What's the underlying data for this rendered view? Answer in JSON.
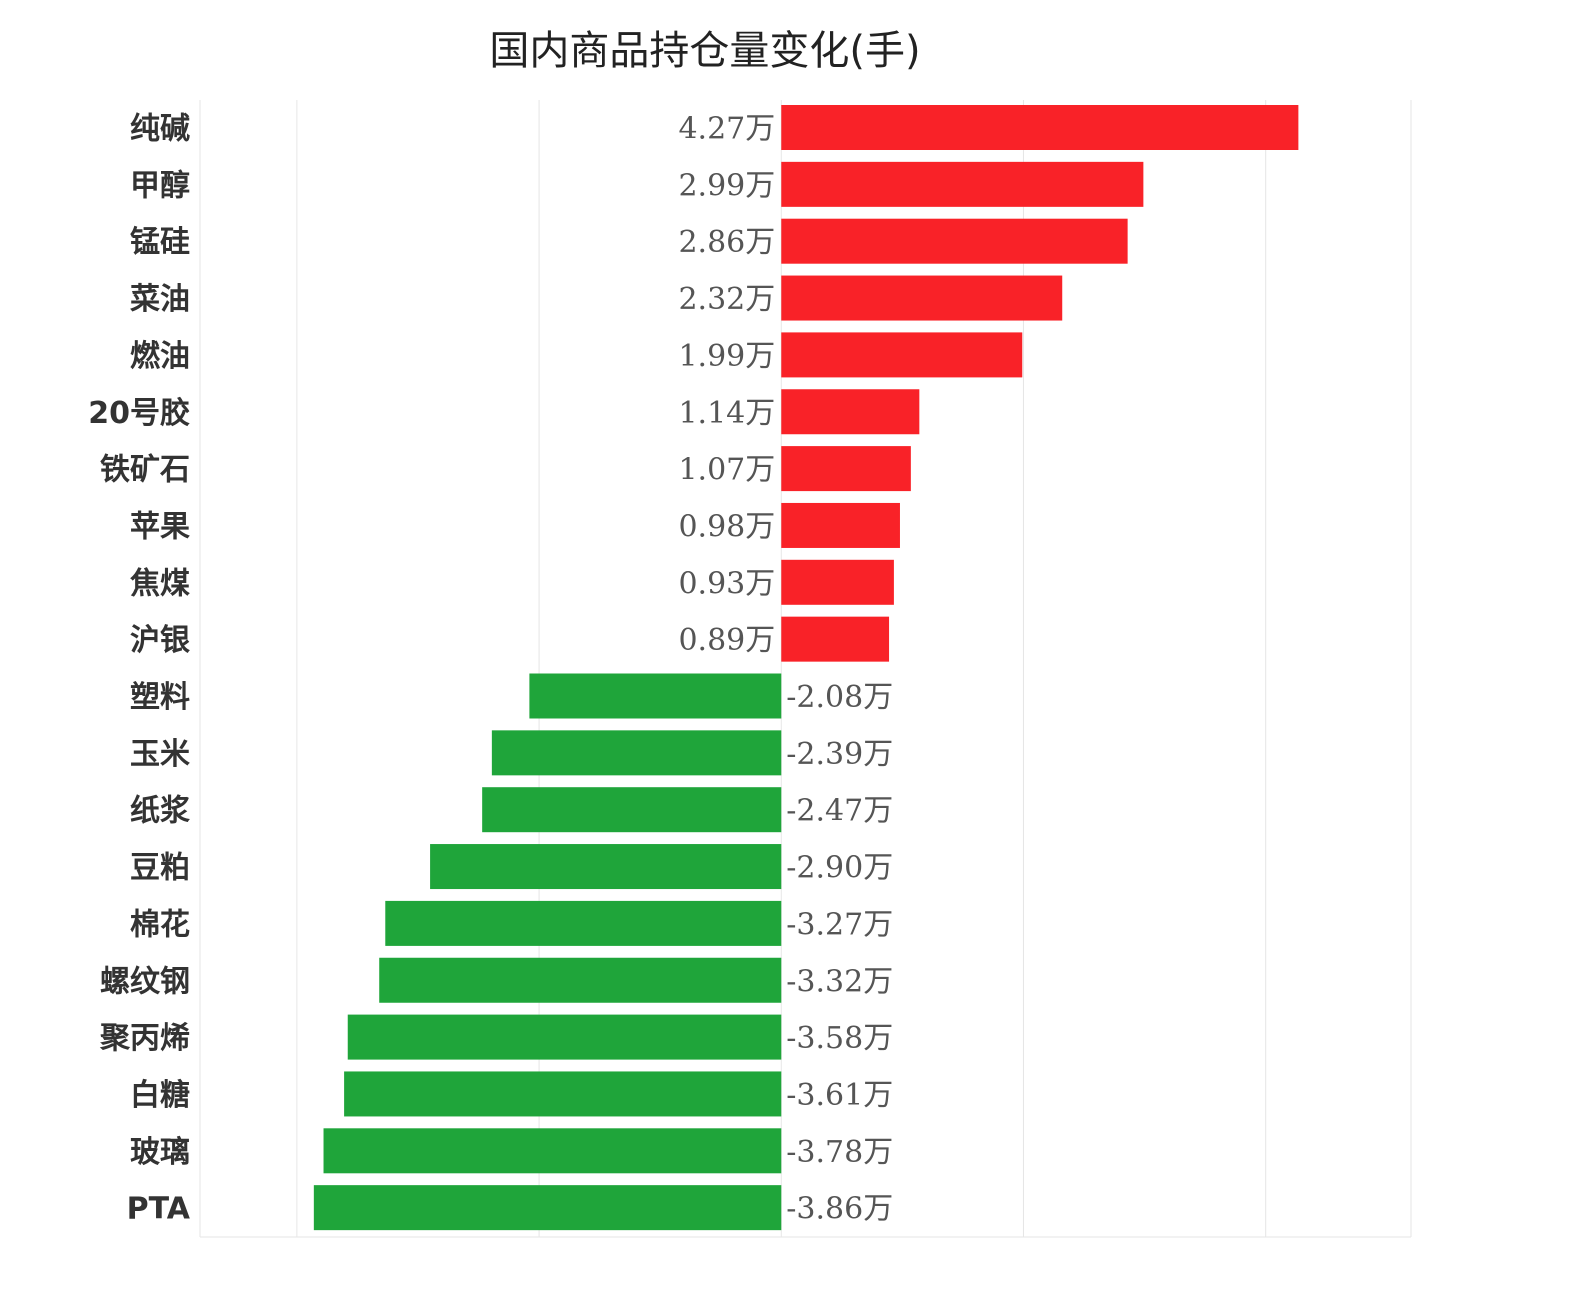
{
  "chart_data": {
    "type": "bar",
    "orientation": "horizontal",
    "title": "国内商品持仓量变化(手)",
    "xlabel": "",
    "ylabel": "",
    "value_suffix": "万",
    "xlim": [
      -4.8,
      5.2
    ],
    "grid": true,
    "categories": [
      "纯碱",
      "甲醇",
      "锰硅",
      "菜油",
      "燃油",
      "20号胶",
      "铁矿石",
      "苹果",
      "焦煤",
      "沪银",
      "塑料",
      "玉米",
      "纸浆",
      "豆粕",
      "棉花",
      "螺纹钢",
      "聚丙烯",
      "白糖",
      "玻璃",
      "PTA"
    ],
    "values": [
      4.27,
      2.99,
      2.86,
      2.32,
      1.99,
      1.14,
      1.07,
      0.98,
      0.93,
      0.89,
      -2.08,
      -2.39,
      -2.47,
      -2.9,
      -3.27,
      -3.32,
      -3.58,
      -3.61,
      -3.78,
      -3.86
    ],
    "labels": [
      "4.27万",
      "2.99万",
      "2.86万",
      "2.32万",
      "1.99万",
      "1.14万",
      "1.07万",
      "0.98万",
      "0.93万",
      "0.89万",
      "-2.08万",
      "-2.39万",
      "-2.47万",
      "-2.90万",
      "-3.27万",
      "-3.32万",
      "-3.58万",
      "-3.61万",
      "-3.78万",
      "-3.86万"
    ],
    "colors": {
      "positive": "#f92228",
      "negative": "#1fa53a",
      "grid": "#e6e6e6"
    }
  }
}
